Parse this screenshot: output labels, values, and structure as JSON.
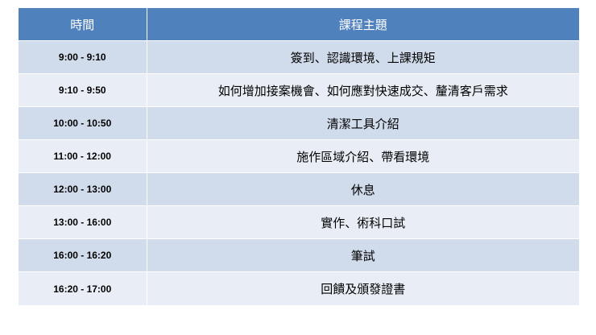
{
  "header": {
    "time": "時間",
    "topic": "課程主題"
  },
  "colors": {
    "header": "#4F81BD",
    "row_odd": "#D0DBEB",
    "row_even": "#E9EEF6"
  },
  "rows": [
    {
      "time": "9:00 - 9:10",
      "topic": "簽到、認識環境、上課規矩"
    },
    {
      "time": "9:10 - 9:50",
      "topic": "如何增加接案機會、如何應對快速成交、釐清客戶需求"
    },
    {
      "time": "10:00 - 10:50",
      "topic": "清潔工具介紹"
    },
    {
      "time": "11:00 - 12:00",
      "topic": "施作區域介紹、帶看環境"
    },
    {
      "time": "12:00 - 13:00",
      "topic": "休息"
    },
    {
      "time": "13:00 - 16:00",
      "topic": "實作、術科口試"
    },
    {
      "time": "16:00 - 16:20",
      "topic": "筆試"
    },
    {
      "time": "16:20 - 17:00",
      "topic": "回饋及頒發證書"
    }
  ]
}
